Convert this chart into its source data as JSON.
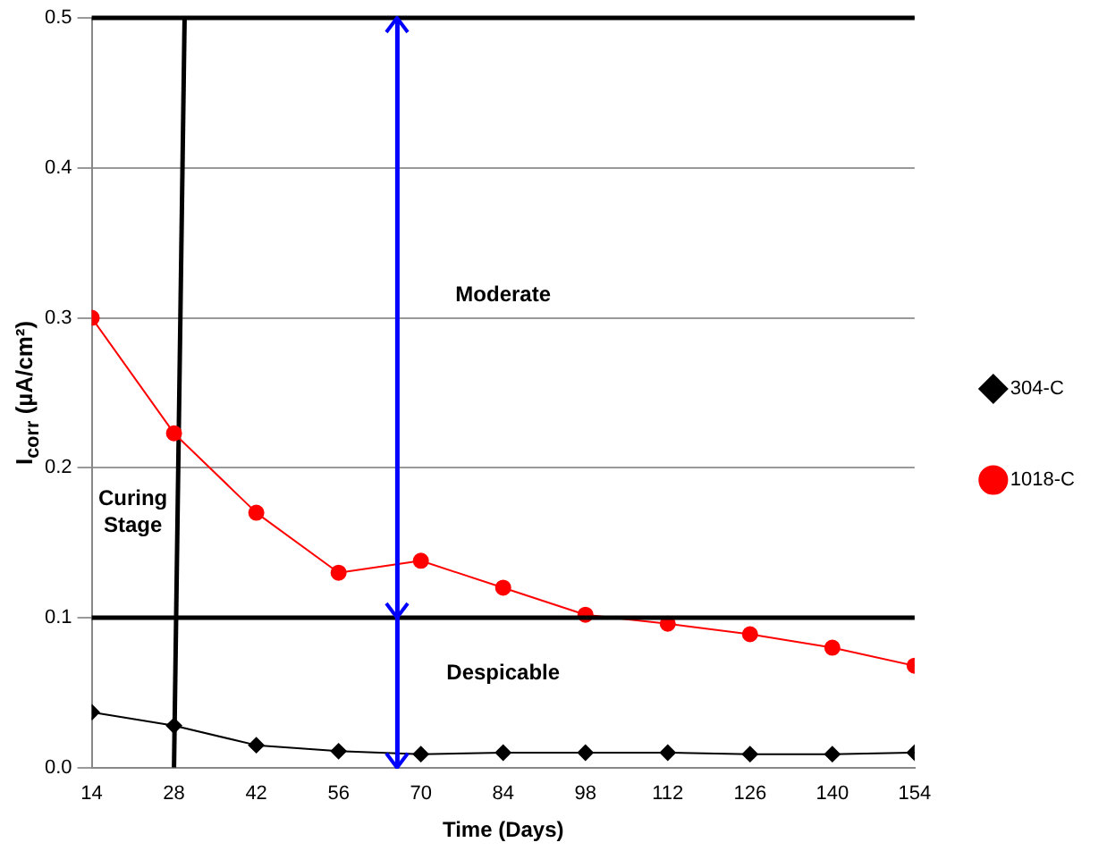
{
  "chart_data": {
    "type": "line",
    "xlabel": "Time (Days)",
    "ylabel": "I$_{corr}$ (µA/cm²)",
    "x": [
      14,
      28,
      42,
      56,
      70,
      84,
      98,
      112,
      126,
      140,
      154
    ],
    "series": [
      {
        "name": "304-C",
        "color": "#000000",
        "marker": "diamond",
        "values": [
          0.037,
          0.028,
          0.015,
          0.011,
          0.009,
          0.01,
          0.01,
          0.01,
          0.009,
          0.009,
          0.01
        ]
      },
      {
        "name": "1018-C",
        "color": "#ff0000",
        "marker": "circle",
        "values": [
          0.3,
          0.223,
          0.17,
          0.13,
          0.138,
          0.12,
          0.102,
          0.096,
          0.089,
          0.08,
          0.068
        ]
      },
      {
        "type": "line",
        "color": "#000000",
        "marker": "none",
        "x": [
          28,
          29.8
        ],
        "values": [
          0,
          0.5
        ]
      }
    ],
    "ref_lines": [
      {
        "axis": "y",
        "value": 0.1,
        "color": "#000000"
      },
      {
        "axis": "y",
        "value": 0.5,
        "color": "#000000"
      },
      {
        "axis": "x",
        "value": 66,
        "color": "#0000ff"
      }
    ],
    "annotations": [
      "Moderate",
      "Despicable",
      "Curing\nStage"
    ],
    "xlim": [
      14,
      154
    ],
    "xticks": [
      14,
      28,
      42,
      56,
      70,
      84,
      98,
      112,
      126,
      140,
      154
    ],
    "ylim": [
      0,
      0.5
    ],
    "yticks": [
      {
        "value": 0,
        "label": "0.0"
      },
      0.1,
      0.2,
      0.3,
      0.4,
      0.5
    ],
    "grid": "y",
    "legend": "right"
  }
}
